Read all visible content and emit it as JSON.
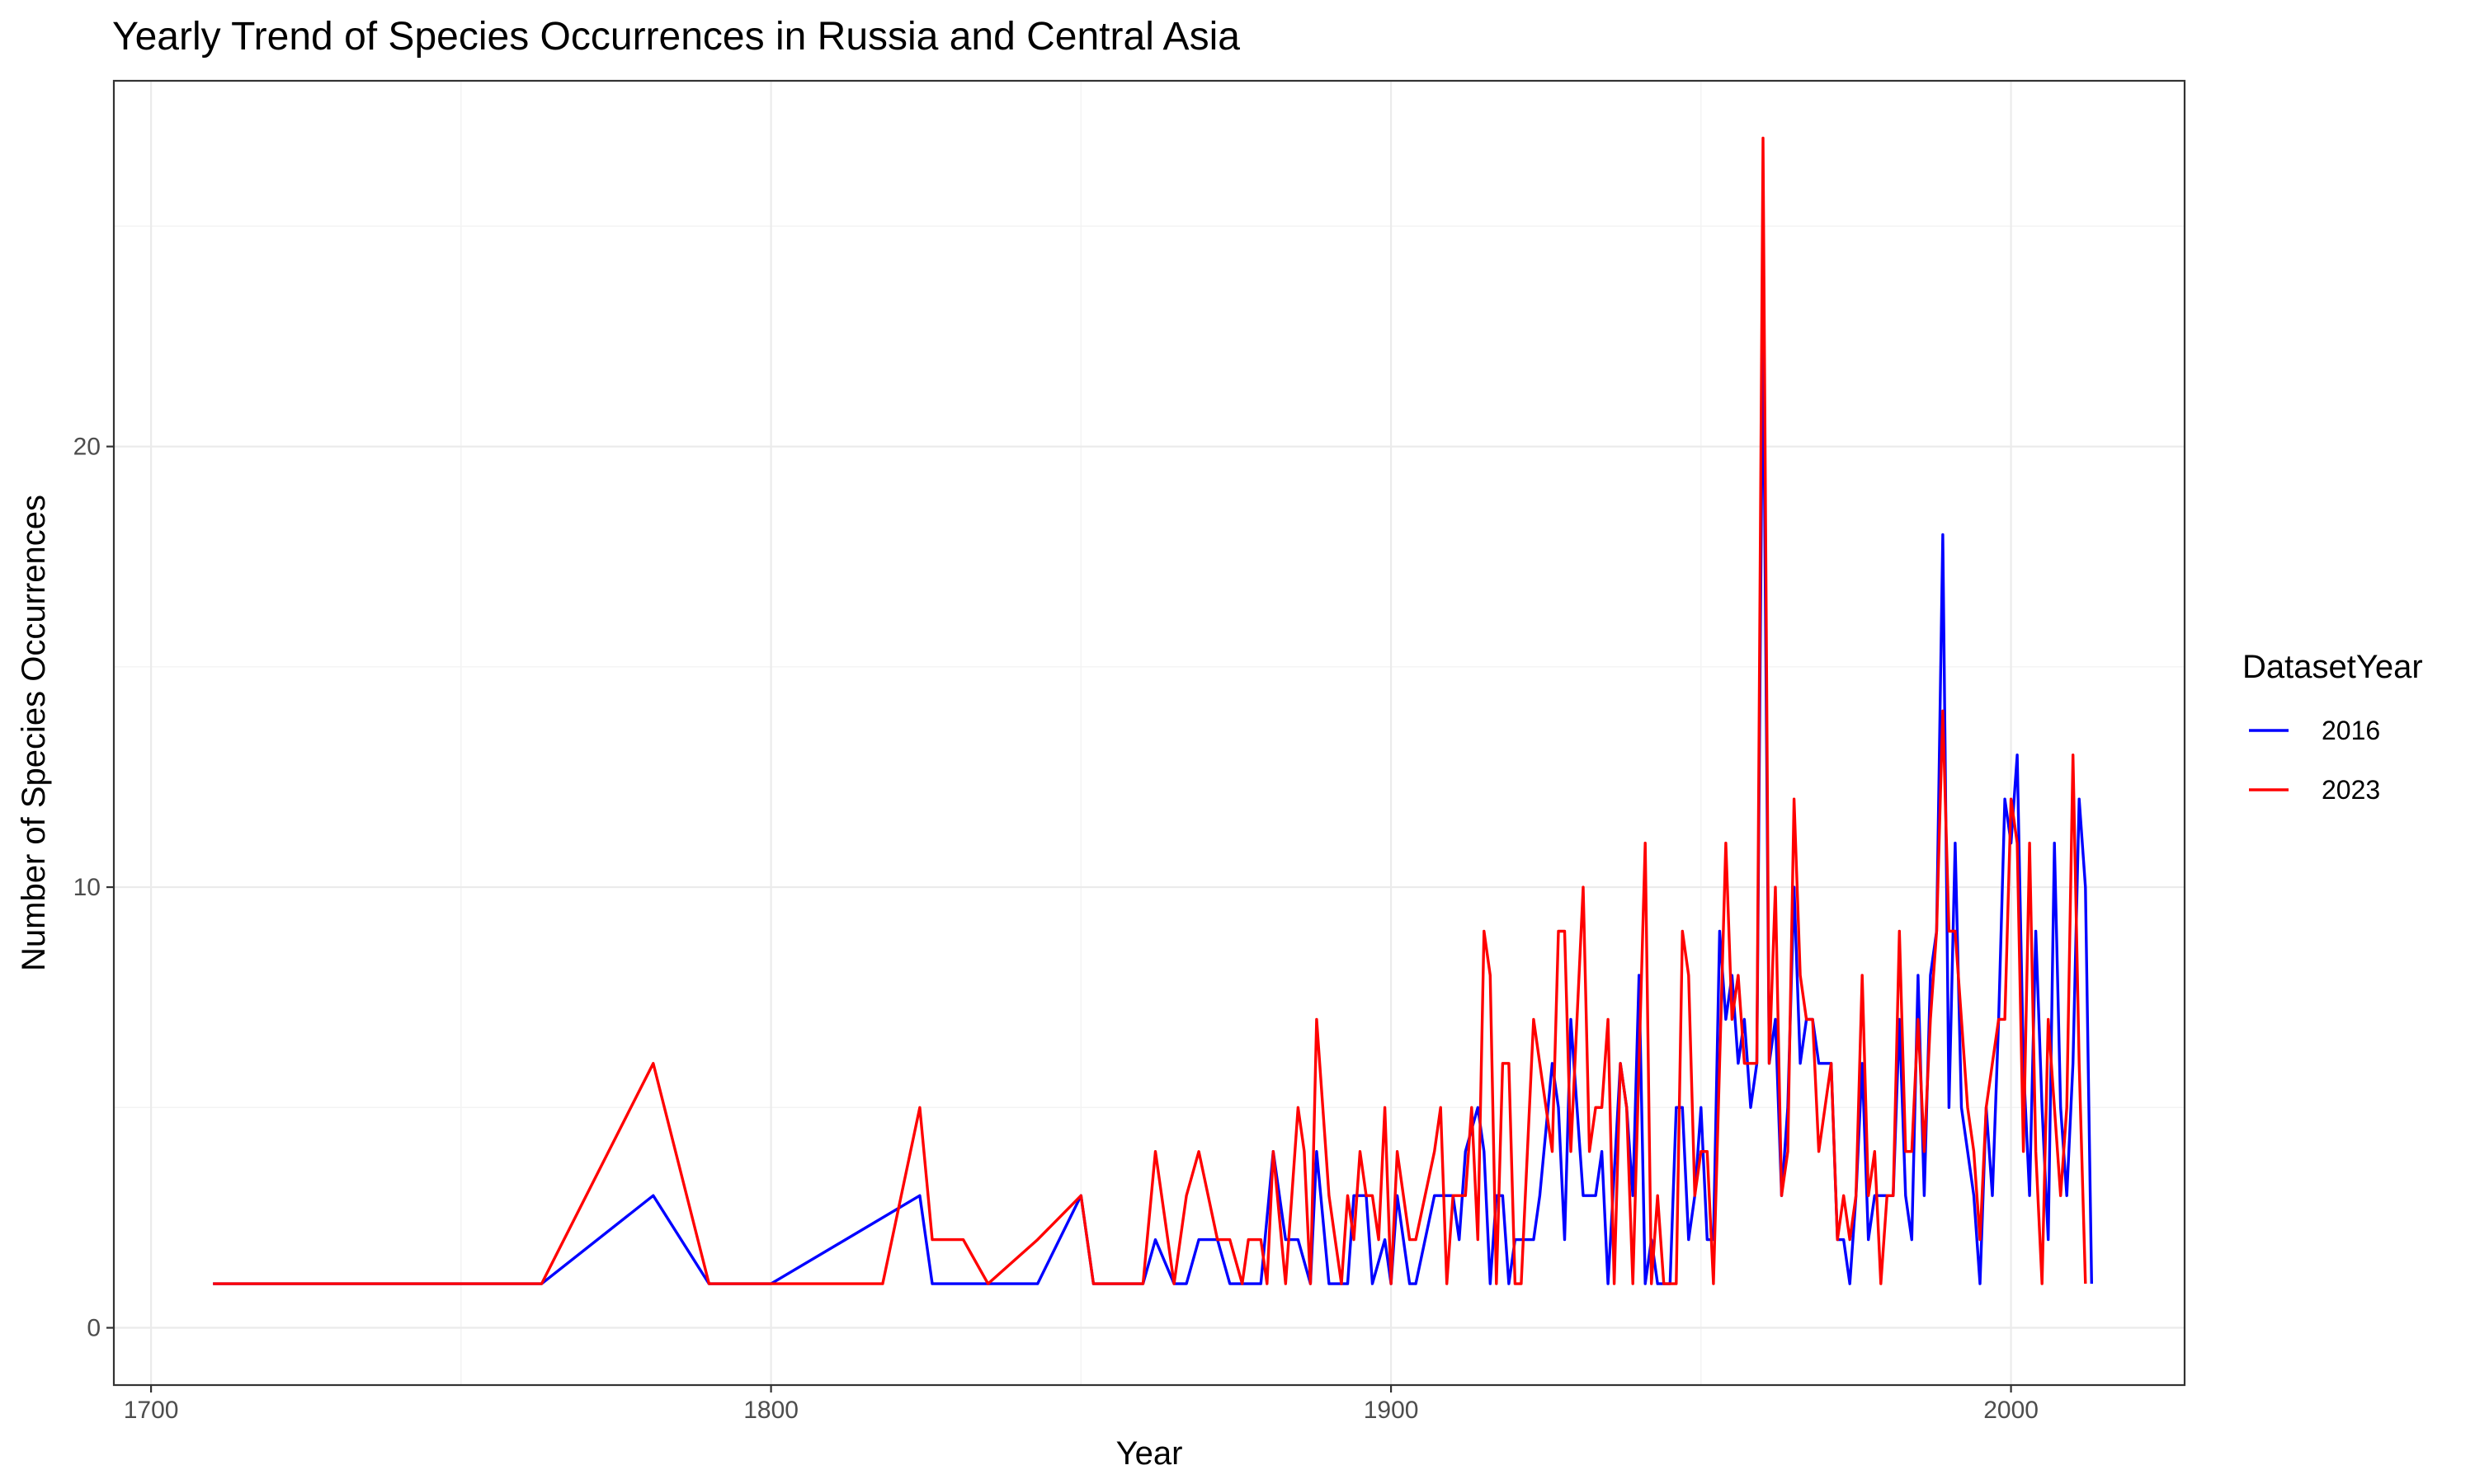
{
  "chart_data": {
    "type": "line",
    "title": "Yearly Trend of Species Occurrences in Russia and Central Asia",
    "xlabel": "Year",
    "ylabel": "Number of Species Occurrences",
    "xlim": [
      1694,
      2028
    ],
    "ylim": [
      -1.3,
      28.3
    ],
    "x_ticks": [
      1700,
      1800,
      1900,
      2000
    ],
    "y_ticks": [
      0,
      10,
      20
    ],
    "x_minor": [
      1750,
      1850,
      1950
    ],
    "y_minor": [
      5,
      15,
      25
    ],
    "grid": true,
    "legend": {
      "title": "DatasetYear",
      "position": "right"
    },
    "series": [
      {
        "name": "2016",
        "color": "#0000ff",
        "points": [
          [
            1710,
            1
          ],
          [
            1763,
            1
          ],
          [
            1781,
            3
          ],
          [
            1790,
            1
          ],
          [
            1800,
            1
          ],
          [
            1824,
            3
          ],
          [
            1826,
            1
          ],
          [
            1835,
            1
          ],
          [
            1843,
            1
          ],
          [
            1850,
            3
          ],
          [
            1852,
            1
          ],
          [
            1860,
            1
          ],
          [
            1862,
            2
          ],
          [
            1865,
            1
          ],
          [
            1867,
            1
          ],
          [
            1869,
            2
          ],
          [
            1872,
            2
          ],
          [
            1874,
            1
          ],
          [
            1876,
            1
          ],
          [
            1879,
            1
          ],
          [
            1881,
            4
          ],
          [
            1883,
            2
          ],
          [
            1885,
            2
          ],
          [
            1887,
            1
          ],
          [
            1888,
            4
          ],
          [
            1890,
            1
          ],
          [
            1893,
            1
          ],
          [
            1894,
            3
          ],
          [
            1896,
            3
          ],
          [
            1897,
            1
          ],
          [
            1899,
            2
          ],
          [
            1900,
            1
          ],
          [
            1901,
            3
          ],
          [
            1903,
            1
          ],
          [
            1904,
            1
          ],
          [
            1907,
            3
          ],
          [
            1910,
            3
          ],
          [
            1911,
            2
          ],
          [
            1912,
            4
          ],
          [
            1914,
            5
          ],
          [
            1915,
            4
          ],
          [
            1916,
            1
          ],
          [
            1917,
            3
          ],
          [
            1918,
            3
          ],
          [
            1919,
            1
          ],
          [
            1920,
            2
          ],
          [
            1923,
            2
          ],
          [
            1924,
            3
          ],
          [
            1926,
            6
          ],
          [
            1927,
            5
          ],
          [
            1928,
            2
          ],
          [
            1929,
            7
          ],
          [
            1930,
            5
          ],
          [
            1931,
            3
          ],
          [
            1933,
            3
          ],
          [
            1934,
            4
          ],
          [
            1935,
            1
          ],
          [
            1937,
            6
          ],
          [
            1938,
            5
          ],
          [
            1939,
            3
          ],
          [
            1940,
            8
          ],
          [
            1941,
            1
          ],
          [
            1942,
            2
          ],
          [
            1943,
            1
          ],
          [
            1944,
            1
          ],
          [
            1945,
            1
          ],
          [
            1946,
            5
          ],
          [
            1947,
            5
          ],
          [
            1948,
            2
          ],
          [
            1949,
            3
          ],
          [
            1950,
            5
          ],
          [
            1951,
            2
          ],
          [
            1952,
            2
          ],
          [
            1953,
            9
          ],
          [
            1954,
            7
          ],
          [
            1955,
            8
          ],
          [
            1956,
            6
          ],
          [
            1957,
            7
          ],
          [
            1958,
            5
          ],
          [
            1959,
            6
          ],
          [
            1960,
            23
          ],
          [
            1961,
            6
          ],
          [
            1962,
            7
          ],
          [
            1963,
            3
          ],
          [
            1964,
            5
          ],
          [
            1965,
            10
          ],
          [
            1966,
            6
          ],
          [
            1967,
            7
          ],
          [
            1968,
            7
          ],
          [
            1969,
            6
          ],
          [
            1970,
            6
          ],
          [
            1971,
            6
          ],
          [
            1972,
            2
          ],
          [
            1973,
            2
          ],
          [
            1974,
            1
          ],
          [
            1975,
            3
          ],
          [
            1976,
            6
          ],
          [
            1977,
            2
          ],
          [
            1978,
            3
          ],
          [
            1979,
            3
          ],
          [
            1980,
            3
          ],
          [
            1981,
            3
          ],
          [
            1982,
            7
          ],
          [
            1983,
            3
          ],
          [
            1984,
            2
          ],
          [
            1985,
            8
          ],
          [
            1986,
            3
          ],
          [
            1987,
            8
          ],
          [
            1988,
            9
          ],
          [
            1989,
            18
          ],
          [
            1990,
            5
          ],
          [
            1991,
            11
          ],
          [
            1992,
            5
          ],
          [
            1993,
            4
          ],
          [
            1994,
            3
          ],
          [
            1995,
            1
          ],
          [
            1996,
            5
          ],
          [
            1997,
            3
          ],
          [
            1998,
            7
          ],
          [
            1999,
            12
          ],
          [
            2000,
            11
          ],
          [
            2001,
            13
          ],
          [
            2002,
            6
          ],
          [
            2003,
            3
          ],
          [
            2004,
            9
          ],
          [
            2005,
            5
          ],
          [
            2006,
            2
          ],
          [
            2007,
            11
          ],
          [
            2008,
            5
          ],
          [
            2009,
            3
          ],
          [
            2010,
            6
          ],
          [
            2011,
            12
          ],
          [
            2012,
            10
          ],
          [
            2013,
            1
          ]
        ]
      },
      {
        "name": "2023",
        "color": "#ff0000",
        "points": [
          [
            1710,
            1
          ],
          [
            1763,
            1
          ],
          [
            1781,
            6
          ],
          [
            1790,
            1
          ],
          [
            1800,
            1
          ],
          [
            1818,
            1
          ],
          [
            1824,
            5
          ],
          [
            1826,
            2
          ],
          [
            1831,
            2
          ],
          [
            1835,
            1
          ],
          [
            1843,
            2
          ],
          [
            1850,
            3
          ],
          [
            1852,
            1
          ],
          [
            1860,
            1
          ],
          [
            1862,
            4
          ],
          [
            1865,
            1
          ],
          [
            1867,
            3
          ],
          [
            1869,
            4
          ],
          [
            1872,
            2
          ],
          [
            1874,
            2
          ],
          [
            1876,
            1
          ],
          [
            1877,
            2
          ],
          [
            1879,
            2
          ],
          [
            1880,
            1
          ],
          [
            1881,
            4
          ],
          [
            1883,
            1
          ],
          [
            1885,
            5
          ],
          [
            1886,
            4
          ],
          [
            1887,
            1
          ],
          [
            1888,
            7
          ],
          [
            1890,
            3
          ],
          [
            1891,
            2
          ],
          [
            1892,
            1
          ],
          [
            1893,
            3
          ],
          [
            1894,
            2
          ],
          [
            1895,
            4
          ],
          [
            1896,
            3
          ],
          [
            1897,
            3
          ],
          [
            1898,
            2
          ],
          [
            1899,
            5
          ],
          [
            1900,
            1
          ],
          [
            1901,
            4
          ],
          [
            1902,
            3
          ],
          [
            1903,
            2
          ],
          [
            1904,
            2
          ],
          [
            1907,
            4
          ],
          [
            1908,
            5
          ],
          [
            1909,
            1
          ],
          [
            1910,
            3
          ],
          [
            1911,
            3
          ],
          [
            1912,
            3
          ],
          [
            1913,
            5
          ],
          [
            1914,
            2
          ],
          [
            1915,
            9
          ],
          [
            1916,
            8
          ],
          [
            1917,
            1
          ],
          [
            1918,
            6
          ],
          [
            1919,
            6
          ],
          [
            1920,
            1
          ],
          [
            1921,
            1
          ],
          [
            1923,
            7
          ],
          [
            1924,
            6
          ],
          [
            1926,
            4
          ],
          [
            1927,
            9
          ],
          [
            1928,
            9
          ],
          [
            1929,
            4
          ],
          [
            1931,
            10
          ],
          [
            1932,
            4
          ],
          [
            1933,
            5
          ],
          [
            1934,
            5
          ],
          [
            1935,
            7
          ],
          [
            1936,
            1
          ],
          [
            1937,
            6
          ],
          [
            1938,
            5
          ],
          [
            1939,
            1
          ],
          [
            1941,
            11
          ],
          [
            1942,
            1
          ],
          [
            1943,
            3
          ],
          [
            1944,
            1
          ],
          [
            1945,
            1
          ],
          [
            1946,
            1
          ],
          [
            1947,
            9
          ],
          [
            1948,
            8
          ],
          [
            1949,
            3
          ],
          [
            1950,
            4
          ],
          [
            1951,
            4
          ],
          [
            1952,
            1
          ],
          [
            1953,
            6
          ],
          [
            1954,
            11
          ],
          [
            1955,
            7
          ],
          [
            1956,
            8
          ],
          [
            1957,
            6
          ],
          [
            1958,
            6
          ],
          [
            1959,
            6
          ],
          [
            1960,
            27
          ],
          [
            1961,
            6
          ],
          [
            1962,
            10
          ],
          [
            1963,
            3
          ],
          [
            1964,
            4
          ],
          [
            1965,
            12
          ],
          [
            1966,
            8
          ],
          [
            1967,
            7
          ],
          [
            1968,
            7
          ],
          [
            1969,
            4
          ],
          [
            1970,
            5
          ],
          [
            1971,
            6
          ],
          [
            1972,
            2
          ],
          [
            1973,
            3
          ],
          [
            1974,
            2
          ],
          [
            1975,
            3
          ],
          [
            1976,
            8
          ],
          [
            1977,
            3
          ],
          [
            1978,
            4
          ],
          [
            1979,
            1
          ],
          [
            1980,
            3
          ],
          [
            1981,
            3
          ],
          [
            1982,
            9
          ],
          [
            1983,
            4
          ],
          [
            1984,
            4
          ],
          [
            1985,
            7
          ],
          [
            1986,
            4
          ],
          [
            1987,
            7
          ],
          [
            1988,
            9
          ],
          [
            1989,
            14
          ],
          [
            1990,
            9
          ],
          [
            1991,
            9
          ],
          [
            1992,
            7
          ],
          [
            1993,
            5
          ],
          [
            1994,
            4
          ],
          [
            1995,
            2
          ],
          [
            1996,
            5
          ],
          [
            1997,
            6
          ],
          [
            1998,
            7
          ],
          [
            1999,
            7
          ],
          [
            2000,
            12
          ],
          [
            2001,
            11
          ],
          [
            2002,
            4
          ],
          [
            2003,
            11
          ],
          [
            2004,
            4
          ],
          [
            2005,
            1
          ],
          [
            2006,
            7
          ],
          [
            2007,
            5
          ],
          [
            2008,
            3
          ],
          [
            2009,
            5
          ],
          [
            2010,
            13
          ],
          [
            2011,
            6
          ],
          [
            2012,
            1
          ]
        ]
      }
    ]
  }
}
